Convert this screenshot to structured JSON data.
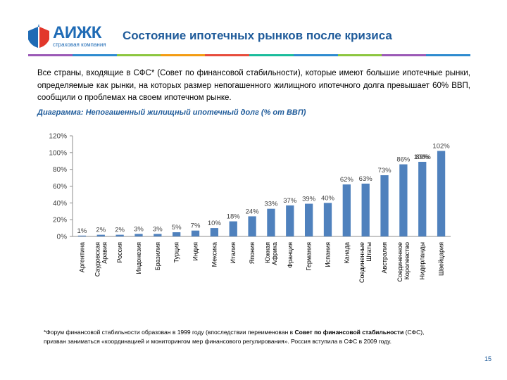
{
  "header": {
    "logo_name": "АИЖК",
    "logo_subtitle": "страховая компания",
    "title": "Состояние ипотечных рынков после кризиса",
    "stripe_colors": [
      "#9b59b6",
      "#2e8bcf",
      "#8cc63f",
      "#f39c12",
      "#e74c3c",
      "#1abc9c",
      "#2e8bcf",
      "#8cc63f",
      "#9b59b6",
      "#2e8bcf"
    ]
  },
  "intro": {
    "text": "Все страны, входящие в СФС* (Совет по финансовой стабильности), которые имеют большие ипотечные рынки, определяемые как рынки, на которых размер непогашенного жилищного ипотечного долга превышает 60% ВВП, сообщили о проблемах на своем ипотечном рынке."
  },
  "chart_data": {
    "type": "bar",
    "title": "Диаграмма: Непогашенный жилищный ипотечный долг (% от ВВП)",
    "categories": [
      "Аргентина",
      "Саудовская Аравия",
      "Россия",
      "Индонезия",
      "Бразилия",
      "Турция",
      "Индия",
      "Мексика",
      "Италия",
      "Япония",
      "Южная Африка",
      "Франция",
      "Германия",
      "Испания",
      "Канада",
      "Соединенные Штаты",
      "Австралия",
      "Соединенное Королевство",
      "Нидерланды",
      "Швейцария"
    ],
    "values": [
      1,
      2,
      2,
      3,
      3,
      5,
      7,
      10,
      18,
      24,
      33,
      37,
      39,
      40,
      62,
      63,
      73,
      86,
      89,
      102
    ],
    "value_labels": [
      "1%",
      "2%",
      "2%",
      "3%",
      "3%",
      "5%",
      "7%",
      "10%",
      "18%",
      "24%",
      "33%",
      "37%",
      "39%",
      "40%",
      "62%",
      "63%",
      "73%",
      "86%",
      "89%",
      "102%"
    ],
    "extra_labels": [
      {
        "text": "100%",
        "category_index": 18
      }
    ],
    "yticks": [
      0,
      20,
      40,
      60,
      80,
      100,
      120
    ],
    "ytick_labels": [
      "0%",
      "20%",
      "40%",
      "60%",
      "80%",
      "100%",
      "120%"
    ],
    "ylim": [
      0,
      120
    ],
    "xlabel": "",
    "ylabel": "",
    "grid": false,
    "bar_color": "#4f81bd"
  },
  "footnote": {
    "part1": "*Форум финансовой стабильности образован в 1999 году (впоследствии переименован в ",
    "bold": "Совет по финансовой стабильности",
    "part2": " (СФС), призван заниматься «координацией и мониторингом мер финансового регулирования». Россия вступила в СФС в 2009 году."
  },
  "page": {
    "number": "15"
  }
}
